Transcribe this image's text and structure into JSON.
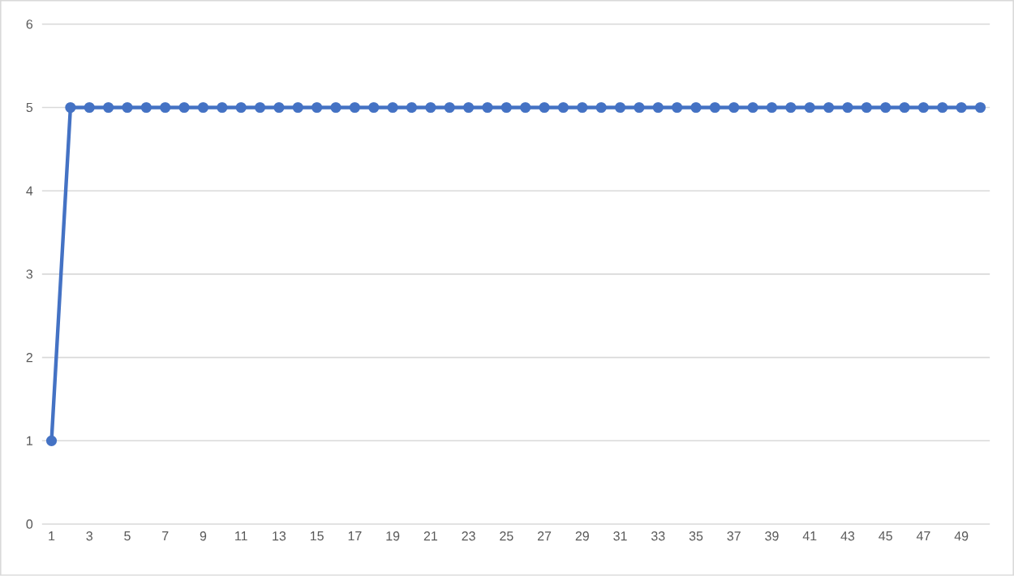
{
  "chart_data": {
    "type": "line",
    "categories": [
      "1",
      null,
      "3",
      null,
      "5",
      null,
      "7",
      null,
      "9",
      null,
      "11",
      null,
      "13",
      null,
      "15",
      null,
      "17",
      null,
      "19",
      null,
      "21",
      null,
      "23",
      null,
      "25",
      null,
      "27",
      null,
      "29",
      null,
      "31",
      null,
      "33",
      null,
      "35",
      null,
      "37",
      null,
      "39",
      null,
      "41",
      null,
      "43",
      null,
      "45",
      null,
      "47",
      null,
      "49",
      null
    ],
    "series": [
      {
        "color": "#4472c4",
        "values": [
          1,
          5,
          5,
          5,
          5,
          5,
          5,
          5,
          5,
          5,
          5,
          5,
          5,
          5,
          5,
          5,
          5,
          5,
          5,
          5,
          5,
          5,
          5,
          5,
          5,
          5,
          5,
          5,
          5,
          5,
          5,
          5,
          5,
          5,
          5,
          5,
          5,
          5,
          5,
          5,
          5,
          5,
          5,
          5,
          5,
          5,
          5,
          5,
          5,
          5
        ]
      }
    ],
    "ylim": [
      0,
      6
    ],
    "yticks": [
      0,
      1,
      2,
      3,
      4,
      5,
      6
    ],
    "grid": "y",
    "marker": "circle",
    "line_style": "solid"
  }
}
